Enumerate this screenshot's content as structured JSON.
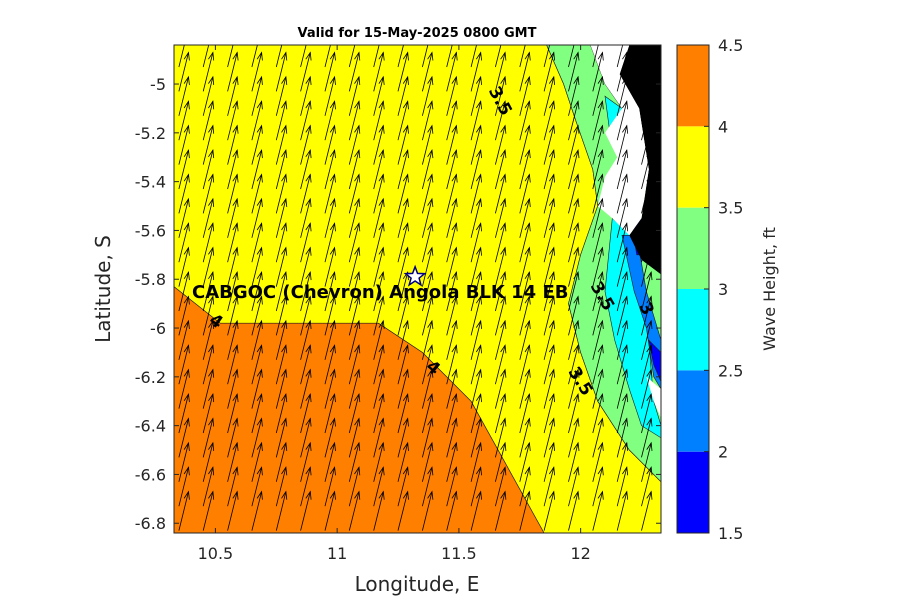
{
  "chart_data": {
    "type": "heatmap",
    "title": "Valid for 15-May-2025 0800 GMT",
    "xlabel": "Longitude, E",
    "ylabel": "Latitude, S",
    "xlim": [
      10.33,
      12.33
    ],
    "ylim": [
      -6.84,
      -4.84
    ],
    "xticks": [
      10.5,
      11,
      11.5,
      12
    ],
    "xtick_labels": [
      "10.5",
      "11",
      "11.5",
      "12"
    ],
    "yticks": [
      -5,
      -5.2,
      -5.4,
      -5.6,
      -5.8,
      -6,
      -6.2,
      -6.4,
      -6.6,
      -6.8
    ],
    "ytick_labels": [
      "-5",
      "-5.2",
      "-5.4",
      "-5.6",
      "-5.8",
      "-6",
      "-6.2",
      "-6.4",
      "-6.6",
      "-6.8"
    ],
    "colorbar": {
      "label": "Wave Height, ft",
      "levels": [
        1.5,
        2,
        2.5,
        3,
        3.5,
        4,
        4.5
      ],
      "tick_labels": [
        "1.5",
        "2",
        "2.5",
        "3",
        "3.5",
        "4",
        "4.5"
      ],
      "colors": [
        "#0000ff",
        "#007fff",
        "#00ffff",
        "#80ff80",
        "#ffff00",
        "#ff7f00"
      ]
    },
    "land_color": "#000000",
    "regions": [
      {
        "level": "4-4.5",
        "color": "#ff7f00",
        "polygon": [
          [
            10.33,
            -5.83
          ],
          [
            10.52,
            -5.98
          ],
          [
            11.17,
            -5.98
          ],
          [
            11.35,
            -6.1
          ],
          [
            11.55,
            -6.3
          ],
          [
            11.85,
            -6.84
          ],
          [
            10.33,
            -6.84
          ]
        ]
      },
      {
        "level": "3.5-4",
        "color": "#ffff00",
        "polygon": [
          [
            10.33,
            -4.84
          ],
          [
            11.86,
            -4.84
          ],
          [
            11.93,
            -5.0
          ],
          [
            11.98,
            -5.15
          ],
          [
            12.05,
            -5.35
          ],
          [
            12.07,
            -5.5
          ],
          [
            12.0,
            -5.7
          ],
          [
            11.95,
            -5.9
          ],
          [
            12.0,
            -6.1
          ],
          [
            12.07,
            -6.3
          ],
          [
            12.2,
            -6.5
          ],
          [
            12.33,
            -6.63
          ],
          [
            12.33,
            -6.84
          ],
          [
            11.85,
            -6.84
          ],
          [
            11.55,
            -6.3
          ],
          [
            11.35,
            -6.1
          ],
          [
            11.17,
            -5.98
          ],
          [
            10.52,
            -5.98
          ],
          [
            10.33,
            -5.83
          ]
        ]
      },
      {
        "level": "3-3.5",
        "color": "#80ff80",
        "polygon": [
          [
            11.86,
            -4.84
          ],
          [
            12.04,
            -4.84
          ],
          [
            12.1,
            -5.0
          ],
          [
            12.17,
            -5.1
          ],
          [
            12.22,
            -5.3
          ],
          [
            12.3,
            -5.5
          ],
          [
            12.33,
            -5.7
          ],
          [
            12.33,
            -6.63
          ],
          [
            12.2,
            -6.5
          ],
          [
            12.07,
            -6.3
          ],
          [
            12.0,
            -6.1
          ],
          [
            11.95,
            -5.9
          ],
          [
            12.0,
            -5.7
          ],
          [
            12.07,
            -5.5
          ],
          [
            12.05,
            -5.35
          ],
          [
            11.98,
            -5.15
          ],
          [
            11.93,
            -5.0
          ]
        ]
      },
      {
        "level": "2.5-3",
        "color": "#00ffff",
        "polygon": [
          [
            12.13,
            -5.55
          ],
          [
            12.21,
            -5.62
          ],
          [
            12.27,
            -5.85
          ],
          [
            12.28,
            -6.05
          ],
          [
            12.3,
            -6.3
          ],
          [
            12.33,
            -6.4
          ],
          [
            12.33,
            -6.45
          ],
          [
            12.25,
            -6.4
          ],
          [
            12.2,
            -6.25
          ],
          [
            12.14,
            -6.05
          ],
          [
            12.1,
            -5.85
          ]
        ]
      },
      {
        "level": "2.5-3",
        "color": "#00ffff",
        "polygon": [
          [
            12.1,
            -5.05
          ],
          [
            12.17,
            -5.1
          ],
          [
            12.18,
            -5.2
          ],
          [
            12.12,
            -5.2
          ]
        ]
      },
      {
        "level": "2-2.5",
        "color": "#007fff",
        "polygon": [
          [
            12.17,
            -5.62
          ],
          [
            12.23,
            -5.62
          ],
          [
            12.27,
            -5.85
          ],
          [
            12.33,
            -6.05
          ],
          [
            12.33,
            -6.25
          ],
          [
            12.3,
            -6.2
          ],
          [
            12.27,
            -6.0
          ],
          [
            12.22,
            -5.85
          ]
        ]
      },
      {
        "level": "1.5-2",
        "color": "#0000ff",
        "polygon": [
          [
            12.2,
            -5.5
          ],
          [
            12.24,
            -5.5
          ],
          [
            12.27,
            -5.7
          ],
          [
            12.23,
            -5.7
          ]
        ]
      },
      {
        "level": "1.5-2",
        "color": "#0000ff",
        "polygon": [
          [
            12.28,
            -6.05
          ],
          [
            12.33,
            -6.1
          ],
          [
            12.33,
            -6.22
          ],
          [
            12.3,
            -6.15
          ]
        ]
      },
      {
        "level": "land",
        "color": "#000000",
        "polygon": [
          [
            12.2,
            -4.84
          ],
          [
            12.33,
            -4.84
          ],
          [
            12.33,
            -5.78
          ],
          [
            12.25,
            -5.72
          ],
          [
            12.2,
            -5.62
          ],
          [
            12.25,
            -5.55
          ],
          [
            12.28,
            -5.35
          ],
          [
            12.24,
            -5.1
          ],
          [
            12.16,
            -4.96
          ]
        ]
      },
      {
        "level": "white",
        "color": "#ffffff",
        "polygon": [
          [
            12.04,
            -4.84
          ],
          [
            12.2,
            -4.84
          ],
          [
            12.16,
            -4.96
          ],
          [
            12.24,
            -5.1
          ],
          [
            12.28,
            -5.35
          ],
          [
            12.25,
            -5.55
          ],
          [
            12.2,
            -5.62
          ],
          [
            12.13,
            -5.55
          ],
          [
            12.07,
            -5.5
          ],
          [
            12.1,
            -5.38
          ],
          [
            12.15,
            -5.3
          ],
          [
            12.1,
            -5.2
          ],
          [
            12.17,
            -5.1
          ],
          [
            12.1,
            -5.0
          ]
        ]
      },
      {
        "level": "white",
        "color": "#ffffff",
        "polygon": [
          [
            12.27,
            -6.2
          ],
          [
            12.33,
            -6.25
          ],
          [
            12.33,
            -6.37
          ],
          [
            12.3,
            -6.3
          ]
        ]
      }
    ],
    "contour_labels": [
      {
        "text": "3.5",
        "lon": 11.65,
        "lat": -5.08,
        "angle": 62
      },
      {
        "text": "4",
        "lon": 10.49,
        "lat": -5.99,
        "angle": 35
      },
      {
        "text": "4",
        "lon": 11.38,
        "lat": -6.18,
        "angle": 40
      },
      {
        "text": "3.5",
        "lon": 12.07,
        "lat": -5.88,
        "angle": 60
      },
      {
        "text": "3.5",
        "lon": 11.98,
        "lat": -6.23,
        "angle": 58
      },
      {
        "text": "3",
        "lon": 12.25,
        "lat": -5.93,
        "angle": 65
      }
    ],
    "station": {
      "label": "CABGOC (Chevron)  Angola BLK 14  EB",
      "lon": 11.32,
      "lat": -5.79
    },
    "wave_direction_arrows": {
      "spacing_deg": 0.1,
      "bearing_deg": 14
    }
  }
}
